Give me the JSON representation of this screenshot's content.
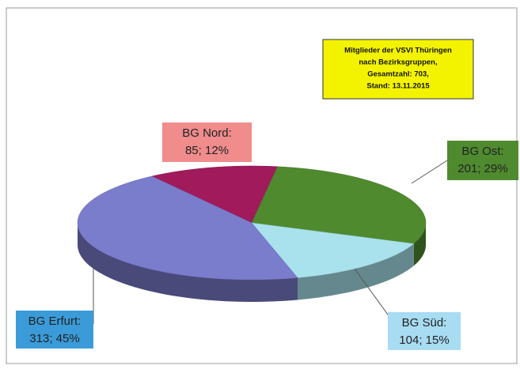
{
  "chart_data": {
    "type": "pie",
    "title_lines": [
      "Mitglieder der VSVI Thüringen",
      "nach Bezirksgruppen,",
      "Gesamtzahl: 703,",
      "Stand: 13.11.2015"
    ],
    "categories": [
      "BG Nord:",
      "BG Ost:",
      "BG Süd:",
      "BG Erfurt:"
    ],
    "values": [
      85,
      201,
      104,
      313
    ],
    "value_labels": [
      "85; 12%",
      "201; 29%",
      "104; 15%",
      "313; 45%"
    ],
    "colors": [
      "#a01a5c",
      "#4f8a2f",
      "#a9e2ec",
      "#7a7ccc"
    ],
    "label_colors": [
      "#f08c8c",
      "#4f8a2f",
      "#a8dcf2",
      "#3b9bd9"
    ]
  }
}
